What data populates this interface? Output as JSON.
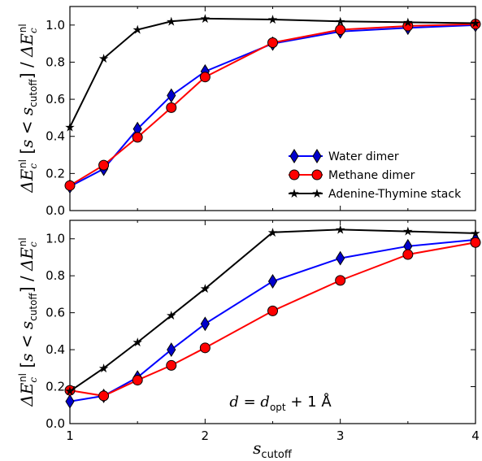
{
  "chart_data": [
    {
      "type": "line",
      "ylabel": "ΔE_c^nl [s < s_cutoff] / ΔE_c^nl",
      "xlim": [
        1,
        4
      ],
      "ylim": [
        0,
        1.1
      ],
      "yticks": [
        "0.0",
        "0.2",
        "0.4",
        "0.6",
        "0.8",
        "1.0"
      ],
      "legend_position": "lower-right",
      "x": [
        1,
        1.25,
        1.5,
        1.75,
        2,
        2.5,
        3,
        3.5,
        4
      ],
      "series": [
        {
          "name": "Water dimer",
          "color": "#0000ff",
          "marker": "diamond",
          "values": [
            0.13,
            0.225,
            0.44,
            0.62,
            0.75,
            0.9,
            0.965,
            0.985,
            1.0
          ]
        },
        {
          "name": "Methane dimer",
          "color": "#ff0000",
          "marker": "circle",
          "values": [
            0.135,
            0.245,
            0.395,
            0.555,
            0.72,
            0.905,
            0.975,
            0.995,
            1.005
          ]
        },
        {
          "name": "Adenine-Thymine stack",
          "color": "#000000",
          "marker": "star",
          "values": [
            0.45,
            0.82,
            0.975,
            1.02,
            1.035,
            1.03,
            1.02,
            1.015,
            1.01
          ]
        }
      ]
    },
    {
      "type": "line",
      "ylabel": "ΔE_c^nl [s < s_cutoff] / ΔE_c^nl",
      "xlabel": "s_cutoff",
      "xlim": [
        1,
        4
      ],
      "ylim": [
        0,
        1.1
      ],
      "xticks": [
        "1",
        "2",
        "3",
        "4"
      ],
      "yticks": [
        "0.0",
        "0.2",
        "0.4",
        "0.6",
        "0.8",
        "1.0"
      ],
      "annotation": "d = d_opt + 1 Å",
      "x": [
        1,
        1.25,
        1.5,
        1.75,
        2,
        2.5,
        3,
        3.5,
        4
      ],
      "series": [
        {
          "name": "Water dimer",
          "color": "#0000ff",
          "marker": "diamond",
          "values": [
            0.12,
            0.15,
            0.25,
            0.4,
            0.54,
            0.77,
            0.895,
            0.96,
            0.995
          ]
        },
        {
          "name": "Methane dimer",
          "color": "#ff0000",
          "marker": "circle",
          "values": [
            0.18,
            0.15,
            0.235,
            0.315,
            0.41,
            0.61,
            0.775,
            0.915,
            0.98
          ]
        },
        {
          "name": "Adenine-Thymine stack",
          "color": "#000000",
          "marker": "star",
          "values": [
            0.175,
            0.3,
            0.44,
            0.585,
            0.73,
            1.035,
            1.05,
            1.04,
            1.03
          ]
        }
      ]
    }
  ]
}
